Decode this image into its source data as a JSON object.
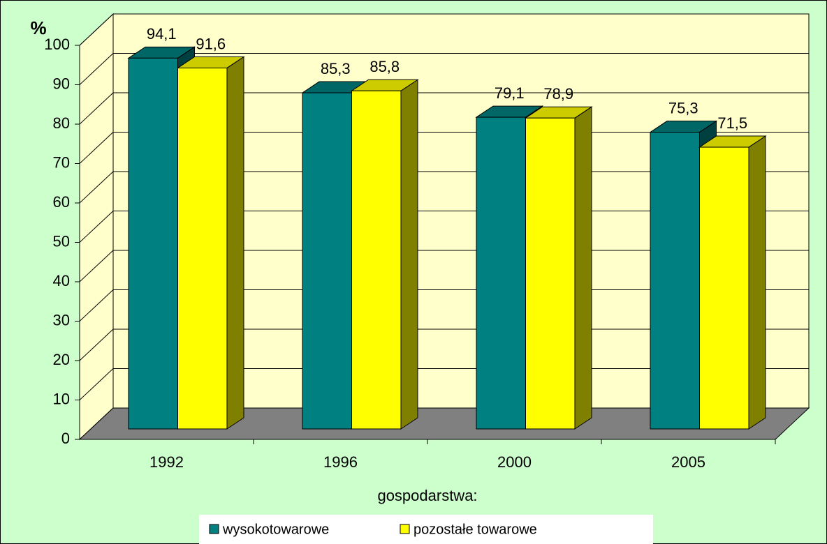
{
  "chart_data": {
    "type": "bar3d",
    "categories": [
      "1992",
      "1996",
      "2000",
      "2005"
    ],
    "series": [
      {
        "name": "wysokotowarowe",
        "color": "#008080",
        "values": [
          94.1,
          85.3,
          79.1,
          75.3
        ],
        "value_labels": [
          "94,1",
          "85,3",
          "79,1",
          "75,3"
        ]
      },
      {
        "name": "pozostałe towarowe",
        "color": "#ffff00",
        "values": [
          91.6,
          85.8,
          78.9,
          71.5
        ],
        "value_labels": [
          "91,6",
          "85,8",
          "78,9",
          "71,5"
        ]
      }
    ],
    "ylabel": "%",
    "xlabel": "gospodarstwa:",
    "ylim": [
      0,
      100
    ],
    "yticks": [
      0,
      10,
      20,
      30,
      40,
      50,
      60,
      70,
      80,
      90,
      100
    ],
    "grid": true,
    "legend": "bottom"
  }
}
